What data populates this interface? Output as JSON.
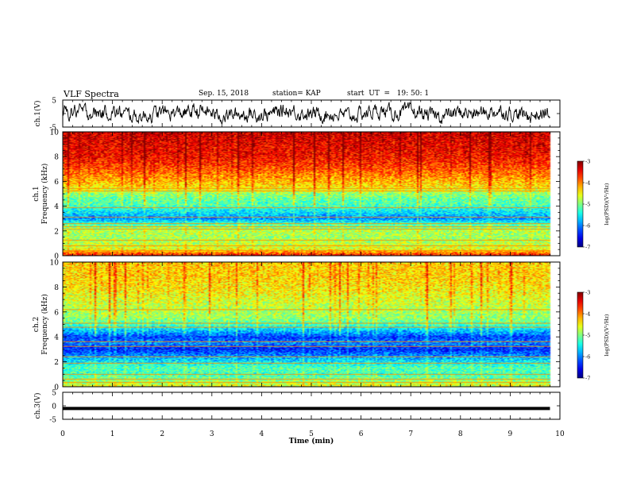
{
  "header": {
    "title": "VLF Spectra",
    "date": "Sep. 15, 2018",
    "station": "station= KAP",
    "start_ut": "start  UT  =   19: 50: 1"
  },
  "chart_data": [
    {
      "type": "line",
      "panel": "ch1-waveform",
      "ylabel": "ch.1(V)",
      "ylim": [
        -5,
        5
      ],
      "yticks": [
        "5",
        "-5"
      ],
      "x_range_min": [
        0,
        9.8
      ],
      "description_values": {
        "mean": 0,
        "spread": 2.5
      }
    },
    {
      "type": "heatmap",
      "panel": "ch1-spectrogram",
      "ylabel_line1": "ch.1",
      "ylabel_line2": "Frequency  (kHz)",
      "ylim": [
        0,
        10
      ],
      "yticks": [
        "0",
        "2",
        "4",
        "6",
        "8",
        "10"
      ],
      "x_range_min": [
        0,
        9.8
      ],
      "level_profile": [
        {
          "f": 0.0,
          "level": -3.6
        },
        {
          "f": 0.5,
          "level": -4.6
        },
        {
          "f": 1.0,
          "level": -4.8
        },
        {
          "f": 1.5,
          "level": -4.9
        },
        {
          "f": 2.0,
          "level": -4.8
        },
        {
          "f": 2.5,
          "level": -5.2
        },
        {
          "f": 3.0,
          "level": -6.0
        },
        {
          "f": 3.5,
          "level": -5.6
        },
        {
          "f": 4.0,
          "level": -5.3
        },
        {
          "f": 4.5,
          "level": -5.2
        },
        {
          "f": 5.0,
          "level": -5.0
        },
        {
          "f": 5.5,
          "level": -4.5
        },
        {
          "f": 6.0,
          "level": -4.3
        },
        {
          "f": 7.0,
          "level": -3.9
        },
        {
          "f": 8.0,
          "level": -3.6
        },
        {
          "f": 9.0,
          "level": -3.5
        },
        {
          "f": 10.0,
          "level": -3.4
        }
      ],
      "lines_khz": [
        0.4,
        0.8,
        1.2,
        2.1,
        2.3,
        2.55,
        3.1,
        3.9,
        5.2,
        5.4
      ]
    },
    {
      "type": "heatmap",
      "panel": "ch2-spectrogram",
      "ylabel_line1": "ch.2",
      "ylabel_line2": "Frequency  (kHz)",
      "ylim": [
        0,
        10
      ],
      "yticks": [
        "0",
        "2",
        "4",
        "6",
        "8",
        "10"
      ],
      "x_range_min": [
        0,
        9.8
      ],
      "level_profile": [
        {
          "f": 0.0,
          "level": -4.6
        },
        {
          "f": 0.5,
          "level": -5.0
        },
        {
          "f": 1.0,
          "level": -5.3
        },
        {
          "f": 1.5,
          "level": -5.2
        },
        {
          "f": 2.0,
          "level": -5.6
        },
        {
          "f": 2.5,
          "level": -6.0
        },
        {
          "f": 3.0,
          "level": -6.4
        },
        {
          "f": 3.5,
          "level": -6.0
        },
        {
          "f": 4.0,
          "level": -6.3
        },
        {
          "f": 4.5,
          "level": -5.8
        },
        {
          "f": 5.0,
          "level": -5.3
        },
        {
          "f": 5.5,
          "level": -5.0
        },
        {
          "f": 6.0,
          "level": -4.9
        },
        {
          "f": 7.0,
          "level": -4.7
        },
        {
          "f": 8.0,
          "level": -4.5
        },
        {
          "f": 9.0,
          "level": -4.4
        },
        {
          "f": 10.0,
          "level": -4.4
        }
      ],
      "lines_khz": [
        0.3,
        0.6,
        1.0,
        1.9,
        2.4,
        3.2,
        3.6,
        4.8,
        5.1,
        6.2
      ]
    },
    {
      "type": "line",
      "panel": "ch3-waveform",
      "ylabel": "ch.3(V)",
      "ylim": [
        -5,
        5
      ],
      "yticks": [
        "5",
        "0",
        "-5"
      ],
      "constant_value": -1,
      "x_range_min": [
        0,
        9.8
      ],
      "xlabel": "Time  (min)",
      "xlim": [
        0,
        10
      ],
      "xticks": [
        "0",
        "1",
        "2",
        "3",
        "4",
        "5",
        "6",
        "7",
        "8",
        "9",
        "10"
      ]
    }
  ],
  "colorbars": [
    {
      "name": "ch1-colorbar",
      "label": "log(PSD)(V²/Hz)",
      "range": [
        -7,
        -3
      ],
      "ticks": [
        "-3",
        "-4",
        "-5",
        "-6",
        "-7"
      ]
    },
    {
      "name": "ch2-colorbar",
      "label": "log(PSD)(V²/Hz)",
      "range": [
        -7,
        -3
      ],
      "ticks": [
        "-3",
        "-4",
        "-5",
        "-6",
        "-7"
      ]
    }
  ]
}
